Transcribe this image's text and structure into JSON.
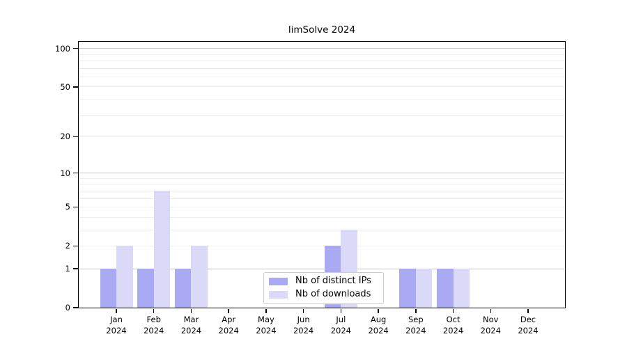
{
  "chart_data": {
    "type": "bar",
    "title": "limSolve 2024",
    "x_axis": {
      "categories": [
        "Jan 2024",
        "Feb 2024",
        "Mar 2024",
        "Apr 2024",
        "May 2024",
        "Jun 2024",
        "Jul 2024",
        "Aug 2024",
        "Sep 2024",
        "Oct 2024",
        "Nov 2024",
        "Dec 2024"
      ]
    },
    "y_axis": {
      "scale": "log1p",
      "ticks": [
        0,
        1,
        2,
        5,
        10,
        20,
        50,
        100
      ],
      "ylim": [
        0,
        113
      ],
      "grid_major_values": [
        1,
        10,
        100
      ],
      "grid_minor_values": [
        2,
        3,
        4,
        5,
        6,
        7,
        8,
        9,
        20,
        30,
        40,
        50,
        60,
        70,
        80,
        90
      ]
    },
    "series": [
      {
        "name": "Nb of distinct IPs",
        "color": "#a9a9f4",
        "values": [
          1,
          1,
          1,
          0,
          0,
          0,
          2,
          0,
          1,
          1,
          0,
          0
        ]
      },
      {
        "name": "Nb of downloads",
        "color": "#dadaf8",
        "values": [
          2,
          7,
          2,
          0,
          0,
          0,
          3,
          0,
          1,
          1,
          0,
          0
        ]
      }
    ],
    "legend": {
      "position": "lower center",
      "items": [
        "Nb of distinct IPs",
        "Nb of downloads"
      ]
    },
    "colors": {
      "grid_major": "#c6c6c6",
      "grid_minor": "#ededed",
      "spine": "#000000"
    }
  }
}
